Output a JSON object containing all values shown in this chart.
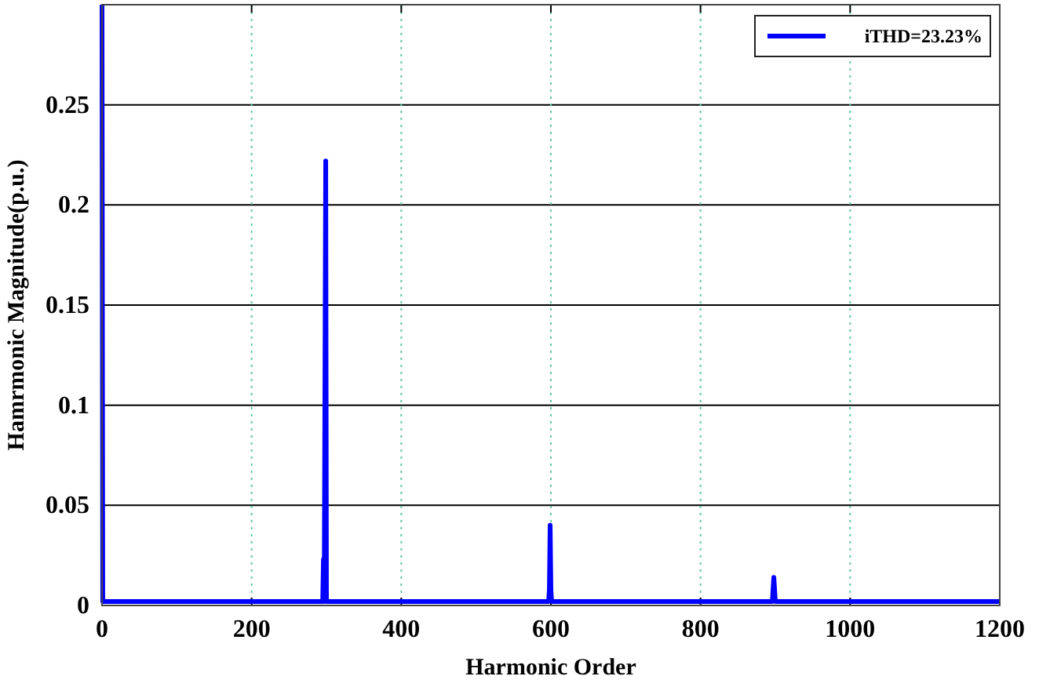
{
  "chart_data": {
    "type": "line",
    "xlabel": "Harmonic Order",
    "ylabel": "Hamrmonic Magnitude(p.u.)",
    "xlim": [
      0,
      1200
    ],
    "xticks": [
      0,
      200,
      400,
      600,
      800,
      1000,
      1200
    ],
    "ylim": [
      0,
      0.3
    ],
    "yticks": [
      0,
      0.05,
      0.1,
      0.15,
      0.2,
      0.25
    ],
    "grid": true,
    "legend": "top right",
    "series": [
      {
        "name": "iTHD=23.23%",
        "color": "#0000ff",
        "x": [
          0,
          1,
          295,
          296,
          297,
          299,
          300,
          597,
          598,
          599,
          600,
          601,
          896,
          898,
          900,
          1200
        ],
        "values": [
          0.3,
          0.002,
          0.002,
          0.023,
          0.002,
          0.222,
          0.002,
          0.002,
          0.008,
          0.04,
          0.008,
          0.002,
          0.002,
          0.014,
          0.002,
          0.002
        ]
      }
    ]
  }
}
